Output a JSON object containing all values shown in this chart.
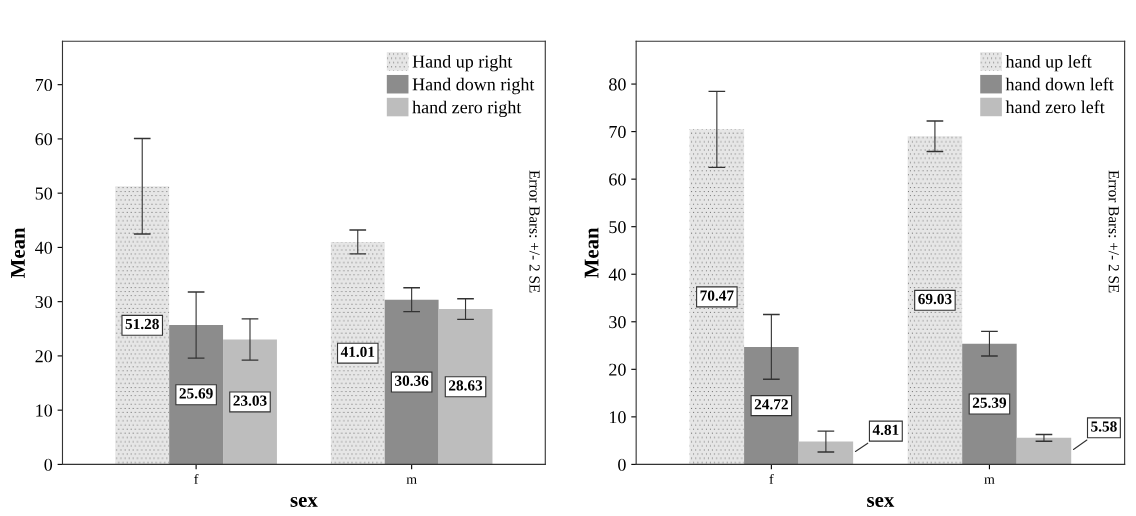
{
  "chart_data": [
    {
      "type": "bar",
      "xlabel": "sex",
      "ylabel": "Mean",
      "categories": [
        "f",
        "m"
      ],
      "ylim": [
        0,
        78
      ],
      "yticks": [
        0,
        10,
        20,
        30,
        40,
        50,
        60,
        70
      ],
      "legend": "top right",
      "data_labels": true,
      "grid": false,
      "series": [
        {
          "name": "Hand up right",
          "color": "#e6e6e6",
          "values": [
            51.28,
            41.01
          ],
          "errors": [
            8.8,
            2.2
          ]
        },
        {
          "name": "Hand down right",
          "color": "#8c8c8c",
          "values": [
            25.69,
            30.36
          ],
          "errors": [
            6.1,
            2.2
          ]
        },
        {
          "name": "hand zero right",
          "color": "#bdbdbd",
          "values": [
            23.03,
            28.63
          ],
          "errors": [
            3.8,
            1.9
          ]
        }
      ],
      "annotations": [
        "Error Bars: +/- 2 SE"
      ]
    },
    {
      "type": "bar",
      "xlabel": "sex",
      "ylabel": "Mean",
      "categories": [
        "f",
        "m"
      ],
      "ylim": [
        0,
        89
      ],
      "yticks": [
        0,
        10,
        20,
        30,
        40,
        50,
        60,
        70,
        80
      ],
      "legend": "top right",
      "data_labels": true,
      "grid": false,
      "series": [
        {
          "name": "hand up left",
          "color": "#e6e6e6",
          "values": [
            70.47,
            69.03
          ],
          "errors": [
            8.0,
            3.2
          ]
        },
        {
          "name": "hand down left",
          "color": "#8c8c8c",
          "values": [
            24.72,
            25.39
          ],
          "errors": [
            6.8,
            2.6
          ]
        },
        {
          "name": "hand zero left",
          "color": "#bdbdbd",
          "values": [
            4.81,
            5.58
          ],
          "errors": [
            2.2,
            0.7
          ]
        }
      ],
      "annotations": [
        "Error Bars: +/- 2 SE"
      ]
    }
  ]
}
